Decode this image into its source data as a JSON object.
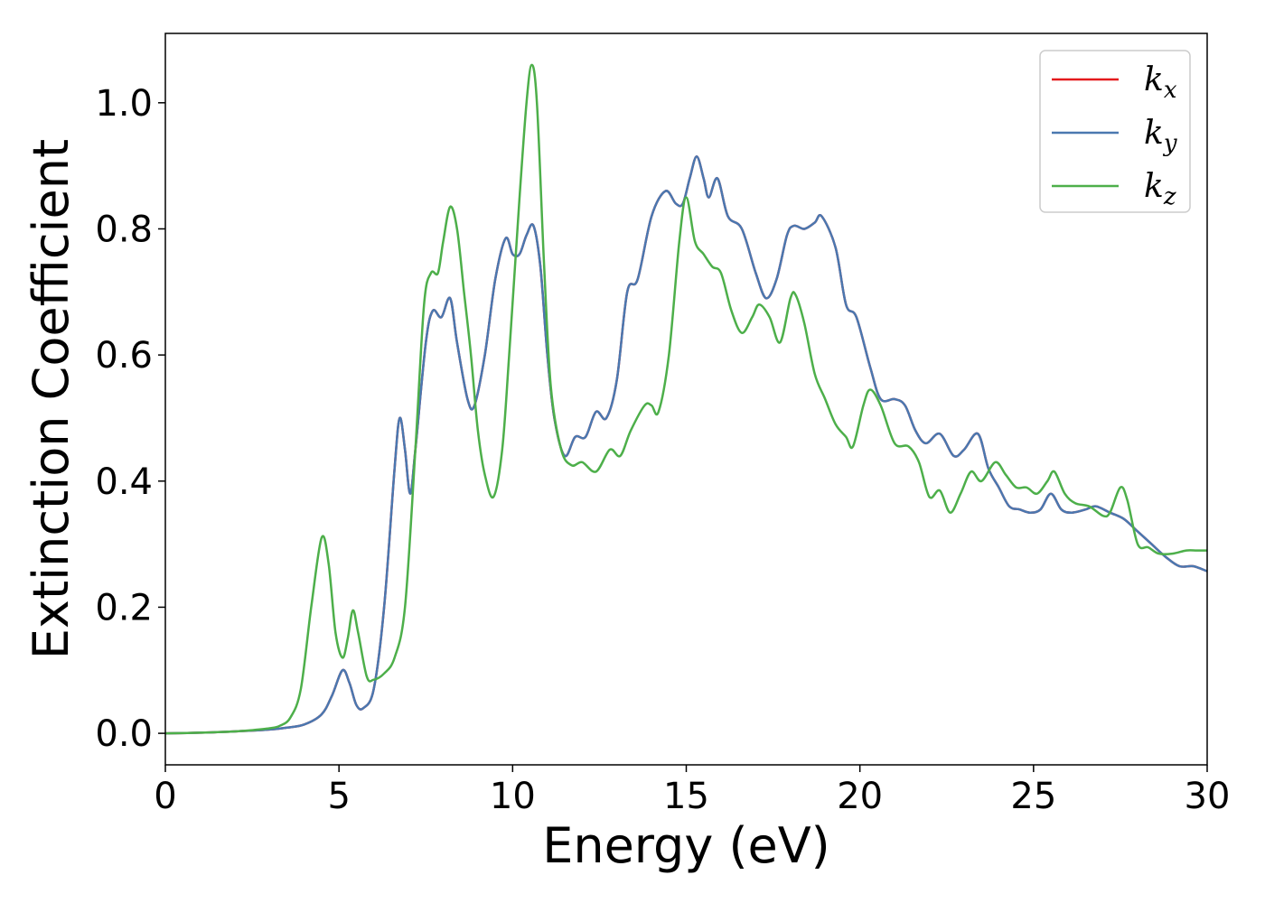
{
  "chart_data": {
    "type": "line",
    "title": "",
    "xlabel": "Energy (eV)",
    "ylabel": "Extinction Coefficient",
    "xlim": [
      0,
      30
    ],
    "ylim": [
      -0.05,
      1.11
    ],
    "xticks": [
      0,
      5,
      10,
      15,
      20,
      25,
      30
    ],
    "xtick_labels": [
      "0",
      "5",
      "10",
      "15",
      "20",
      "25",
      "30"
    ],
    "yticks": [
      0.0,
      0.2,
      0.4,
      0.6,
      0.8,
      1.0
    ],
    "ytick_labels": [
      "0.0",
      "0.2",
      "0.4",
      "0.6",
      "0.8",
      "1.0"
    ],
    "grid": false,
    "legend_position": "top-right",
    "series": [
      {
        "name": "k_x",
        "legend_base": "k",
        "legend_sub": "x",
        "color": "#e41a1c",
        "points": [
          [
            0,
            0
          ],
          [
            1,
            0.001
          ],
          [
            2,
            0.003
          ],
          [
            3,
            0.006
          ],
          [
            3.5,
            0.009
          ],
          [
            4,
            0.014
          ],
          [
            4.5,
            0.03
          ],
          [
            4.8,
            0.06
          ],
          [
            5.1,
            0.1
          ],
          [
            5.3,
            0.08
          ],
          [
            5.5,
            0.045
          ],
          [
            5.7,
            0.04
          ],
          [
            6.0,
            0.07
          ],
          [
            6.3,
            0.2
          ],
          [
            6.6,
            0.42
          ],
          [
            6.75,
            0.5
          ],
          [
            6.9,
            0.45
          ],
          [
            7.05,
            0.38
          ],
          [
            7.2,
            0.45
          ],
          [
            7.5,
            0.62
          ],
          [
            7.7,
            0.67
          ],
          [
            7.95,
            0.66
          ],
          [
            8.2,
            0.69
          ],
          [
            8.4,
            0.62
          ],
          [
            8.7,
            0.53
          ],
          [
            8.9,
            0.52
          ],
          [
            9.2,
            0.6
          ],
          [
            9.5,
            0.72
          ],
          [
            9.8,
            0.785
          ],
          [
            10.0,
            0.76
          ],
          [
            10.2,
            0.76
          ],
          [
            10.4,
            0.79
          ],
          [
            10.6,
            0.805
          ],
          [
            10.8,
            0.74
          ],
          [
            11.0,
            0.6
          ],
          [
            11.2,
            0.5
          ],
          [
            11.5,
            0.44
          ],
          [
            11.8,
            0.47
          ],
          [
            12.1,
            0.47
          ],
          [
            12.4,
            0.51
          ],
          [
            12.7,
            0.5
          ],
          [
            13.0,
            0.56
          ],
          [
            13.3,
            0.7
          ],
          [
            13.6,
            0.72
          ],
          [
            14.0,
            0.82
          ],
          [
            14.4,
            0.86
          ],
          [
            14.7,
            0.84
          ],
          [
            14.9,
            0.84
          ],
          [
            15.1,
            0.88
          ],
          [
            15.3,
            0.915
          ],
          [
            15.5,
            0.88
          ],
          [
            15.65,
            0.85
          ],
          [
            15.9,
            0.88
          ],
          [
            16.2,
            0.82
          ],
          [
            16.6,
            0.8
          ],
          [
            17.0,
            0.73
          ],
          [
            17.3,
            0.69
          ],
          [
            17.6,
            0.72
          ],
          [
            17.9,
            0.79
          ],
          [
            18.1,
            0.805
          ],
          [
            18.4,
            0.8
          ],
          [
            18.7,
            0.81
          ],
          [
            18.9,
            0.82
          ],
          [
            19.3,
            0.77
          ],
          [
            19.6,
            0.68
          ],
          [
            19.9,
            0.66
          ],
          [
            20.3,
            0.58
          ],
          [
            20.6,
            0.53
          ],
          [
            21.0,
            0.53
          ],
          [
            21.3,
            0.52
          ],
          [
            21.6,
            0.48
          ],
          [
            21.9,
            0.46
          ],
          [
            22.3,
            0.475
          ],
          [
            22.7,
            0.44
          ],
          [
            23.0,
            0.45
          ],
          [
            23.4,
            0.475
          ],
          [
            23.7,
            0.42
          ],
          [
            24.0,
            0.39
          ],
          [
            24.3,
            0.36
          ],
          [
            24.6,
            0.355
          ],
          [
            24.9,
            0.35
          ],
          [
            25.2,
            0.355
          ],
          [
            25.5,
            0.38
          ],
          [
            25.8,
            0.355
          ],
          [
            26.1,
            0.35
          ],
          [
            26.5,
            0.355
          ],
          [
            26.8,
            0.36
          ],
          [
            27.2,
            0.35
          ],
          [
            27.6,
            0.34
          ],
          [
            28.0,
            0.32
          ],
          [
            28.4,
            0.3
          ],
          [
            28.8,
            0.28
          ],
          [
            29.2,
            0.265
          ],
          [
            29.6,
            0.265
          ],
          [
            30,
            0.257
          ]
        ]
      },
      {
        "name": "k_y",
        "legend_base": "k",
        "legend_sub": "y",
        "color": "#4a78b0",
        "points": [
          [
            0,
            0
          ],
          [
            1,
            0.001
          ],
          [
            2,
            0.003
          ],
          [
            3,
            0.006
          ],
          [
            3.5,
            0.009
          ],
          [
            4,
            0.014
          ],
          [
            4.5,
            0.03
          ],
          [
            4.8,
            0.06
          ],
          [
            5.1,
            0.1
          ],
          [
            5.3,
            0.08
          ],
          [
            5.5,
            0.045
          ],
          [
            5.7,
            0.04
          ],
          [
            6.0,
            0.07
          ],
          [
            6.3,
            0.2
          ],
          [
            6.6,
            0.42
          ],
          [
            6.75,
            0.5
          ],
          [
            6.9,
            0.45
          ],
          [
            7.05,
            0.38
          ],
          [
            7.2,
            0.45
          ],
          [
            7.5,
            0.62
          ],
          [
            7.7,
            0.67
          ],
          [
            7.95,
            0.66
          ],
          [
            8.2,
            0.69
          ],
          [
            8.4,
            0.62
          ],
          [
            8.7,
            0.53
          ],
          [
            8.9,
            0.52
          ],
          [
            9.2,
            0.6
          ],
          [
            9.5,
            0.72
          ],
          [
            9.8,
            0.785
          ],
          [
            10.0,
            0.76
          ],
          [
            10.2,
            0.76
          ],
          [
            10.4,
            0.79
          ],
          [
            10.6,
            0.805
          ],
          [
            10.8,
            0.74
          ],
          [
            11.0,
            0.6
          ],
          [
            11.2,
            0.5
          ],
          [
            11.5,
            0.44
          ],
          [
            11.8,
            0.47
          ],
          [
            12.1,
            0.47
          ],
          [
            12.4,
            0.51
          ],
          [
            12.7,
            0.5
          ],
          [
            13.0,
            0.56
          ],
          [
            13.3,
            0.7
          ],
          [
            13.6,
            0.72
          ],
          [
            14.0,
            0.82
          ],
          [
            14.4,
            0.86
          ],
          [
            14.7,
            0.84
          ],
          [
            14.9,
            0.84
          ],
          [
            15.1,
            0.88
          ],
          [
            15.3,
            0.915
          ],
          [
            15.5,
            0.88
          ],
          [
            15.65,
            0.85
          ],
          [
            15.9,
            0.88
          ],
          [
            16.2,
            0.82
          ],
          [
            16.6,
            0.8
          ],
          [
            17.0,
            0.73
          ],
          [
            17.3,
            0.69
          ],
          [
            17.6,
            0.72
          ],
          [
            17.9,
            0.79
          ],
          [
            18.1,
            0.805
          ],
          [
            18.4,
            0.8
          ],
          [
            18.7,
            0.81
          ],
          [
            18.9,
            0.82
          ],
          [
            19.3,
            0.77
          ],
          [
            19.6,
            0.68
          ],
          [
            19.9,
            0.66
          ],
          [
            20.3,
            0.58
          ],
          [
            20.6,
            0.53
          ],
          [
            21.0,
            0.53
          ],
          [
            21.3,
            0.52
          ],
          [
            21.6,
            0.48
          ],
          [
            21.9,
            0.46
          ],
          [
            22.3,
            0.475
          ],
          [
            22.7,
            0.44
          ],
          [
            23.0,
            0.45
          ],
          [
            23.4,
            0.475
          ],
          [
            23.7,
            0.42
          ],
          [
            24.0,
            0.39
          ],
          [
            24.3,
            0.36
          ],
          [
            24.6,
            0.355
          ],
          [
            24.9,
            0.35
          ],
          [
            25.2,
            0.355
          ],
          [
            25.5,
            0.38
          ],
          [
            25.8,
            0.355
          ],
          [
            26.1,
            0.35
          ],
          [
            26.5,
            0.355
          ],
          [
            26.8,
            0.36
          ],
          [
            27.2,
            0.35
          ],
          [
            27.6,
            0.34
          ],
          [
            28.0,
            0.32
          ],
          [
            28.4,
            0.3
          ],
          [
            28.8,
            0.28
          ],
          [
            29.2,
            0.265
          ],
          [
            29.6,
            0.265
          ],
          [
            30,
            0.257
          ]
        ]
      },
      {
        "name": "k_z",
        "legend_base": "k",
        "legend_sub": "z",
        "color": "#4daf4a",
        "points": [
          [
            0,
            0
          ],
          [
            1,
            0.001
          ],
          [
            2,
            0.003
          ],
          [
            2.5,
            0.005
          ],
          [
            3,
            0.008
          ],
          [
            3.3,
            0.012
          ],
          [
            3.6,
            0.025
          ],
          [
            3.9,
            0.07
          ],
          [
            4.2,
            0.2
          ],
          [
            4.5,
            0.31
          ],
          [
            4.7,
            0.27
          ],
          [
            4.9,
            0.16
          ],
          [
            5.1,
            0.12
          ],
          [
            5.25,
            0.15
          ],
          [
            5.4,
            0.195
          ],
          [
            5.55,
            0.16
          ],
          [
            5.8,
            0.09
          ],
          [
            6.0,
            0.085
          ],
          [
            6.3,
            0.095
          ],
          [
            6.6,
            0.12
          ],
          [
            6.9,
            0.2
          ],
          [
            7.2,
            0.45
          ],
          [
            7.45,
            0.68
          ],
          [
            7.65,
            0.73
          ],
          [
            7.85,
            0.73
          ],
          [
            8.0,
            0.78
          ],
          [
            8.2,
            0.835
          ],
          [
            8.4,
            0.8
          ],
          [
            8.6,
            0.7
          ],
          [
            8.8,
            0.6
          ],
          [
            9.0,
            0.48
          ],
          [
            9.2,
            0.41
          ],
          [
            9.45,
            0.375
          ],
          [
            9.7,
            0.45
          ],
          [
            9.9,
            0.6
          ],
          [
            10.2,
            0.85
          ],
          [
            10.4,
            1.0
          ],
          [
            10.55,
            1.06
          ],
          [
            10.7,
            1.0
          ],
          [
            10.9,
            0.75
          ],
          [
            11.1,
            0.55
          ],
          [
            11.4,
            0.45
          ],
          [
            11.7,
            0.425
          ],
          [
            12.0,
            0.43
          ],
          [
            12.4,
            0.415
          ],
          [
            12.8,
            0.45
          ],
          [
            13.1,
            0.44
          ],
          [
            13.4,
            0.48
          ],
          [
            13.8,
            0.52
          ],
          [
            14.0,
            0.52
          ],
          [
            14.2,
            0.51
          ],
          [
            14.5,
            0.6
          ],
          [
            14.8,
            0.78
          ],
          [
            15.0,
            0.85
          ],
          [
            15.25,
            0.78
          ],
          [
            15.5,
            0.76
          ],
          [
            15.75,
            0.74
          ],
          [
            16.0,
            0.73
          ],
          [
            16.3,
            0.67
          ],
          [
            16.6,
            0.635
          ],
          [
            16.9,
            0.66
          ],
          [
            17.1,
            0.68
          ],
          [
            17.4,
            0.66
          ],
          [
            17.7,
            0.62
          ],
          [
            18.0,
            0.69
          ],
          [
            18.15,
            0.695
          ],
          [
            18.4,
            0.65
          ],
          [
            18.7,
            0.57
          ],
          [
            19.0,
            0.53
          ],
          [
            19.3,
            0.49
          ],
          [
            19.6,
            0.47
          ],
          [
            19.8,
            0.455
          ],
          [
            20.1,
            0.52
          ],
          [
            20.3,
            0.545
          ],
          [
            20.6,
            0.52
          ],
          [
            21.0,
            0.46
          ],
          [
            21.4,
            0.455
          ],
          [
            21.7,
            0.43
          ],
          [
            22.0,
            0.375
          ],
          [
            22.3,
            0.385
          ],
          [
            22.6,
            0.35
          ],
          [
            22.9,
            0.38
          ],
          [
            23.2,
            0.415
          ],
          [
            23.5,
            0.4
          ],
          [
            23.9,
            0.43
          ],
          [
            24.2,
            0.41
          ],
          [
            24.5,
            0.39
          ],
          [
            24.8,
            0.39
          ],
          [
            25.1,
            0.38
          ],
          [
            25.4,
            0.4
          ],
          [
            25.6,
            0.415
          ],
          [
            25.9,
            0.38
          ],
          [
            26.2,
            0.365
          ],
          [
            26.6,
            0.36
          ],
          [
            27.0,
            0.345
          ],
          [
            27.2,
            0.35
          ],
          [
            27.5,
            0.39
          ],
          [
            27.7,
            0.37
          ],
          [
            28.0,
            0.3
          ],
          [
            28.3,
            0.295
          ],
          [
            28.6,
            0.285
          ],
          [
            29.0,
            0.285
          ],
          [
            29.4,
            0.29
          ],
          [
            29.7,
            0.29
          ],
          [
            30,
            0.29
          ]
        ]
      }
    ]
  }
}
